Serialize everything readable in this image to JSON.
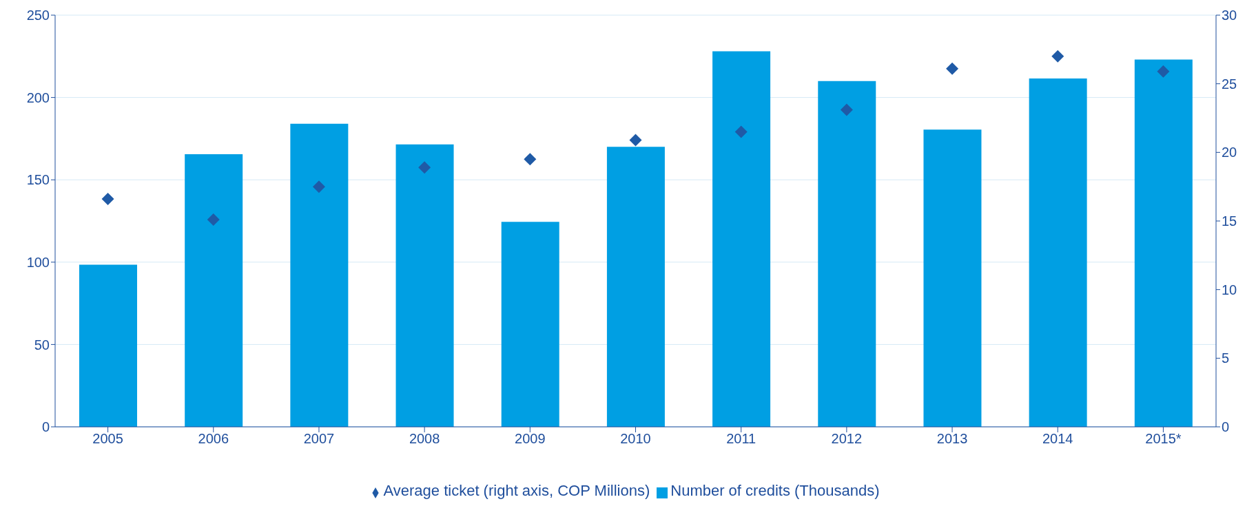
{
  "chart_data": {
    "type": "bar",
    "categories": [
      "2005",
      "2006",
      "2007",
      "2008",
      "2009",
      "2010",
      "2011",
      "2012",
      "2013",
      "2014",
      "2015*"
    ],
    "series": [
      {
        "name": "Number of credits (Thousands)",
        "color": "#009fe3",
        "values": [
          98.5,
          165.5,
          184,
          171.5,
          124.5,
          170,
          228,
          210,
          180.5,
          211.5,
          223
        ]
      },
      {
        "name": "Average ticket (right axis, COP Millions)",
        "type": "scatter",
        "axis": "y2",
        "marker": "diamond",
        "color": "#1f5aa6",
        "values": [
          16.6,
          15.1,
          17.5,
          18.9,
          19.5,
          20.9,
          21.5,
          23.1,
          26.1,
          27.0,
          25.9
        ]
      }
    ],
    "ylim": [
      0,
      250
    ],
    "yticks": [
      0,
      50,
      100,
      150,
      200,
      250
    ],
    "y2lim": [
      0,
      30
    ],
    "y2ticks": [
      0,
      5,
      10,
      15,
      20,
      25,
      30
    ],
    "grid": "y",
    "legend": "bottom"
  }
}
